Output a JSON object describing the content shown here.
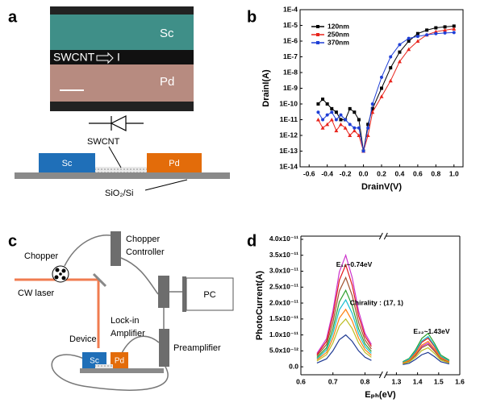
{
  "panels": {
    "a": {
      "letter": "a",
      "sem": {
        "top": "Sc",
        "channel": "SWCNT",
        "current": "I",
        "bottom": "Pd"
      },
      "schematic": {
        "left": "Sc",
        "right": "Pd",
        "tube": "SWCNT",
        "substrate": "SiO₂/Si"
      }
    },
    "b": {
      "letter": "b"
    },
    "c": {
      "letter": "c",
      "chopper": "Chopper",
      "controller": [
        "Chopper",
        "Controller"
      ],
      "laser": "CW laser",
      "lockin": [
        "Lock-in",
        "Amplifier"
      ],
      "pc": "PC",
      "device": "Device",
      "left": "Sc",
      "right": "Pd",
      "preamp": "Preamplifier"
    },
    "d": {
      "letter": "d"
    }
  },
  "chart_data": [
    {
      "type": "line",
      "xlabel": "DrainV(V)",
      "ylabel": "DrainI(A)",
      "ylog": true,
      "legend": "upper left",
      "x": [
        -0.5,
        -0.45,
        -0.4,
        -0.35,
        -0.3,
        -0.25,
        -0.2,
        -0.15,
        -0.1,
        -0.05,
        0,
        0.05,
        0.1,
        0.2,
        0.3,
        0.4,
        0.5,
        0.6,
        0.7,
        0.8,
        0.9,
        1.0
      ],
      "xlim": [
        -0.7,
        1.1
      ],
      "xticks": [
        -0.6,
        -0.4,
        -0.2,
        {
          "value": 0,
          "label": "0.0"
        },
        0.2,
        0.4,
        0.6,
        0.8,
        {
          "value": 1,
          "label": "1.0"
        }
      ],
      "ylim": [
        1e-14,
        0.0001
      ],
      "yticks": [
        {
          "value": 0.0001,
          "label": "1E-4"
        },
        {
          "value": 1e-05,
          "label": "1E-5"
        },
        {
          "value": 1e-06,
          "label": "1E-6"
        },
        {
          "value": 1e-07,
          "label": "1E-7"
        },
        {
          "value": 1e-08,
          "label": "1E-8"
        },
        {
          "value": 1e-09,
          "label": "1E-9"
        },
        {
          "value": 1e-10,
          "label": "1E-10"
        },
        {
          "value": 1e-11,
          "label": "1E-11"
        },
        {
          "value": 1e-12,
          "label": "1E-12"
        },
        {
          "value": 1e-13,
          "label": "1E-13"
        },
        {
          "value": 1e-14,
          "label": "1E-14"
        }
      ],
      "series": [
        {
          "name": "120nm",
          "color": "#000000",
          "values": [
            1e-10,
            2e-10,
            1e-10,
            5e-11,
            3e-11,
            1e-11,
            1e-11,
            5e-11,
            3e-11,
            1e-11,
            1e-13,
            5e-12,
            5e-11,
            1e-09,
            2e-08,
            2e-07,
            1e-06,
            3e-06,
            5e-06,
            7e-06,
            8e-06,
            9e-06
          ]
        },
        {
          "name": "250nm",
          "color": "#e8241c",
          "values": [
            1e-11,
            3e-12,
            5e-12,
            1e-11,
            2e-12,
            5e-12,
            3e-12,
            1e-12,
            2e-12,
            1e-12,
            1e-13,
            1e-12,
            3e-11,
            3e-10,
            3e-09,
            5e-08,
            3e-07,
            1e-06,
            2.5e-06,
            4e-06,
            5e-06,
            6e-06
          ]
        },
        {
          "name": "370nm",
          "color": "#1f3fd6",
          "values": [
            3e-11,
            1e-11,
            2e-11,
            3e-11,
            1e-11,
            2e-11,
            1e-11,
            5e-12,
            3e-12,
            3e-12,
            1e-13,
            3e-12,
            1e-10,
            5e-09,
            1e-07,
            6e-07,
            1.5e-06,
            2e-06,
            2.5e-06,
            3e-06,
            3.3e-06,
            3.5e-06
          ]
        }
      ]
    },
    {
      "type": "line",
      "xlabel": "Eₚₕ(eV)",
      "ylabel": "PhotoCurrent(A)",
      "annotations": [
        "E₁₁~0.74eV",
        "Chirality : (17, 1)",
        "E₂₂~1.43eV"
      ],
      "x": [
        0.65,
        0.68,
        0.7,
        0.72,
        0.74,
        0.76,
        0.78,
        0.8,
        0.82,
        1.33,
        1.36,
        1.39,
        1.42,
        1.45,
        1.48,
        1.51,
        1.55
      ],
      "xlim": [
        0.6,
        1.6
      ],
      "xbreak": [
        0.85,
        1.25
      ],
      "xticks": [
        0.6,
        0.7,
        0.8,
        1.3,
        1.4,
        1.5,
        1.6
      ],
      "ylim": [
        -2.5e-12,
        4.1e-11
      ],
      "yticks": [
        {
          "value": 0,
          "label": "0.0"
        },
        {
          "value": 5e-12,
          "label": "5.0x10⁻¹²"
        },
        {
          "value": 1e-11,
          "label": "1.0x10⁻¹¹"
        },
        {
          "value": 1.5e-11,
          "label": "1.5x10⁻¹¹"
        },
        {
          "value": 2e-11,
          "label": "2.0x10⁻¹¹"
        },
        {
          "value": 2.5e-11,
          "label": "2.5x10⁻¹¹"
        },
        {
          "value": 3e-11,
          "label": "3.0x10⁻¹¹"
        },
        {
          "value": 3.5e-11,
          "label": "3.5x10⁻¹¹"
        },
        {
          "value": 4e-11,
          "label": "4.0x10⁻¹¹"
        }
      ],
      "series": [
        {
          "color": "#cc33cc",
          "values": [
            4.2e-12,
            8.8e-12,
            1.75e-11,
            2.98e-11,
            3.5e-11,
            2.8e-11,
            1.75e-11,
            1.05e-11,
            7e-12,
            1.1e-12,
            1.9e-12,
            3.8e-12,
            6.4e-12,
            7.5e-12,
            5.3e-12,
            2.6e-12,
            1.5e-12
          ]
        },
        {
          "color": "#e31a1c",
          "values": [
            3.8e-12,
            8e-12,
            1.6e-11,
            2.72e-11,
            3.2e-11,
            2.56e-11,
            1.6e-11,
            9.6e-12,
            6.4e-12,
            1.4e-12,
            2.3e-12,
            4.5e-12,
            7.7e-12,
            9e-12,
            6.3e-12,
            3.2e-12,
            1.8e-12
          ]
        },
        {
          "color": "#a0522d",
          "values": [
            3.4e-12,
            7e-12,
            1.4e-11,
            2.38e-11,
            2.8e-11,
            2.24e-11,
            1.4e-11,
            8.4e-12,
            5.6e-12,
            1.1e-12,
            1.8e-12,
            3.5e-12,
            6e-12,
            7e-12,
            4.9e-12,
            2.5e-12,
            1.4e-12
          ]
        },
        {
          "color": "#2ca02c",
          "values": [
            2.9e-12,
            6e-12,
            1.2e-11,
            2.04e-11,
            2.4e-11,
            1.92e-11,
            1.2e-11,
            7.2e-12,
            4.8e-12,
            1.6e-12,
            2.6e-12,
            5.3e-12,
            8.9e-12,
            1.05e-11,
            7.4e-12,
            3.7e-12,
            2.1e-12
          ]
        },
        {
          "color": "#17becf",
          "values": [
            2.5e-12,
            5.3e-12,
            1.05e-11,
            1.79e-11,
            2.1e-11,
            1.68e-11,
            1.05e-11,
            6.3e-12,
            4.2e-12,
            1.4e-12,
            2.4e-12,
            4.8e-12,
            8.1e-12,
            9.5e-12,
            6.7e-12,
            3.3e-12,
            1.9e-12
          ]
        },
        {
          "color": "#ff7f0e",
          "values": [
            2.2e-12,
            4.5e-12,
            9e-12,
            1.53e-11,
            1.8e-11,
            1.44e-11,
            9e-12,
            5.4e-12,
            3.6e-12,
            1.2e-12,
            2e-12,
            4e-12,
            6.8e-12,
            8e-12,
            5.6e-12,
            2.8e-12,
            1.6e-12
          ]
        },
        {
          "color": "#bcbd22",
          "values": [
            1.8e-12,
            3.8e-12,
            7.5e-12,
            1.28e-11,
            1.5e-11,
            1.2e-11,
            7.5e-12,
            4.5e-12,
            3e-12,
            9e-13,
            1.5e-12,
            3e-12,
            5.1e-12,
            6e-12,
            4.2e-12,
            2.1e-12,
            1.2e-12
          ]
        },
        {
          "color": "#1f3a93",
          "values": [
            1.2e-12,
            2.5e-12,
            5e-12,
            8.5e-12,
            1e-11,
            8e-12,
            5e-12,
            3e-12,
            2e-12,
            7e-13,
            1.1e-12,
            2.3e-12,
            3.8e-12,
            4.5e-12,
            3.2e-12,
            1.6e-12,
            9e-13
          ]
        }
      ]
    }
  ]
}
